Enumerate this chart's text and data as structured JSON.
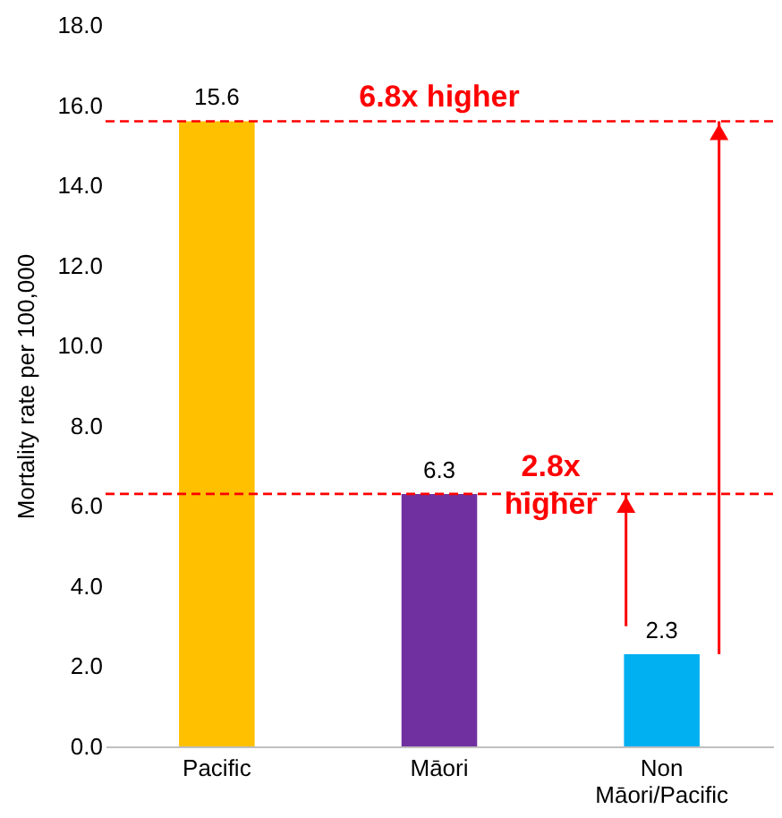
{
  "chart_data": {
    "type": "bar",
    "ylabel": "Mortality rate per 100,000",
    "categories": [
      "Pacific",
      "Māori",
      "Non Māori/Pacific"
    ],
    "values": [
      15.6,
      6.3,
      2.3
    ],
    "colors": [
      "#ffc000",
      "#7030a0",
      "#00b0f0"
    ],
    "data_labels": true,
    "ylim": [
      0,
      18
    ],
    "yticks": [
      {
        "value": 0,
        "label": "0.0"
      },
      {
        "value": 2,
        "label": "2.0"
      },
      {
        "value": 4,
        "label": "4.0"
      },
      {
        "value": 6,
        "label": "6.0"
      },
      {
        "value": 8,
        "label": "8.0"
      },
      {
        "value": 10,
        "label": "10.0"
      },
      {
        "value": 12,
        "label": "12.0"
      },
      {
        "value": 14,
        "label": "14.0"
      },
      {
        "value": 16,
        "label": "16.0"
      },
      {
        "value": 18,
        "label": "18.0"
      }
    ],
    "grid": false,
    "legend": false,
    "ref_lines": [
      {
        "axis": "y",
        "value": 15.6,
        "color": "#ff0000",
        "line_style": "dashed"
      },
      {
        "axis": "y",
        "value": 6.3,
        "color": "#ff0000",
        "line_style": "dashed"
      }
    ],
    "annotations": [
      {
        "text": "6.8x higher",
        "x": "Māori",
        "y": 15.6
      },
      {
        "text": "2.8x higher",
        "x": "Non Māori/Pacific",
        "y": 6.3
      }
    ]
  }
}
